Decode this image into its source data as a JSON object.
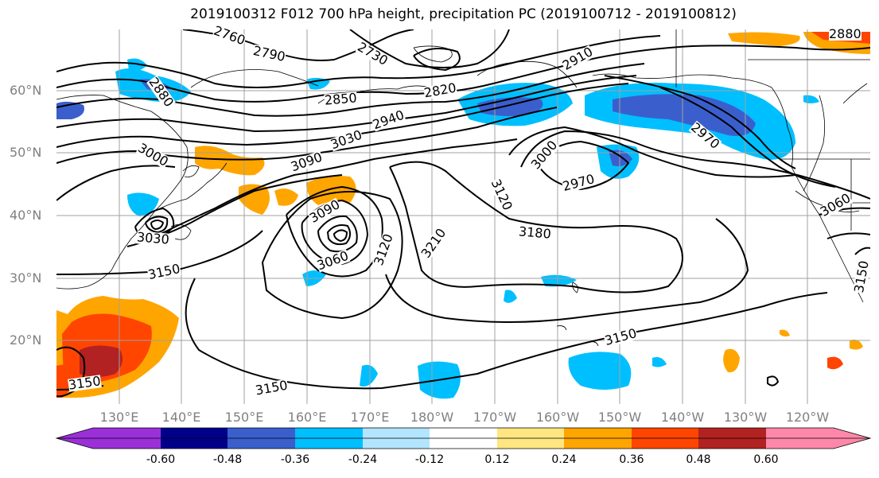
{
  "title": "2019100312 F012 700 hPa height, precipitation PC (2019100712 - 2019100812)",
  "lat_labels": [
    "60°N",
    "50°N",
    "40°N",
    "30°N",
    "20°N"
  ],
  "lon_labels": [
    "130°E",
    "140°E",
    "150°E",
    "160°E",
    "170°E",
    "180°W",
    "170°W",
    "160°W",
    "150°W",
    "140°W",
    "130°W",
    "120°W"
  ],
  "contour_labels": [
    "2790",
    "2730",
    "2910",
    "2880",
    "2850",
    "2820",
    "2940",
    "3030",
    "3090",
    "3000",
    "2970",
    "3000",
    "3120",
    "3180",
    "3210",
    "3090",
    "3060",
    "3120",
    "3030",
    "3150",
    "3150",
    "3150",
    "3150",
    "3060",
    "2970",
    "2880",
    "3150",
    "2760"
  ],
  "colorbar": {
    "colors": [
      "#9b30d9",
      "#00008b",
      "#3a5fcd",
      "#00bfff",
      "#b3e5ff",
      "#ffffff",
      "#ffe680",
      "#ffa500",
      "#ff4500",
      "#b22222",
      "#ff88aa"
    ],
    "tick_labels": [
      "-0.60",
      "-0.48",
      "-0.36",
      "-0.24",
      "-0.12",
      "0.12",
      "0.24",
      "0.36",
      "0.48",
      "0.60"
    ]
  }
}
